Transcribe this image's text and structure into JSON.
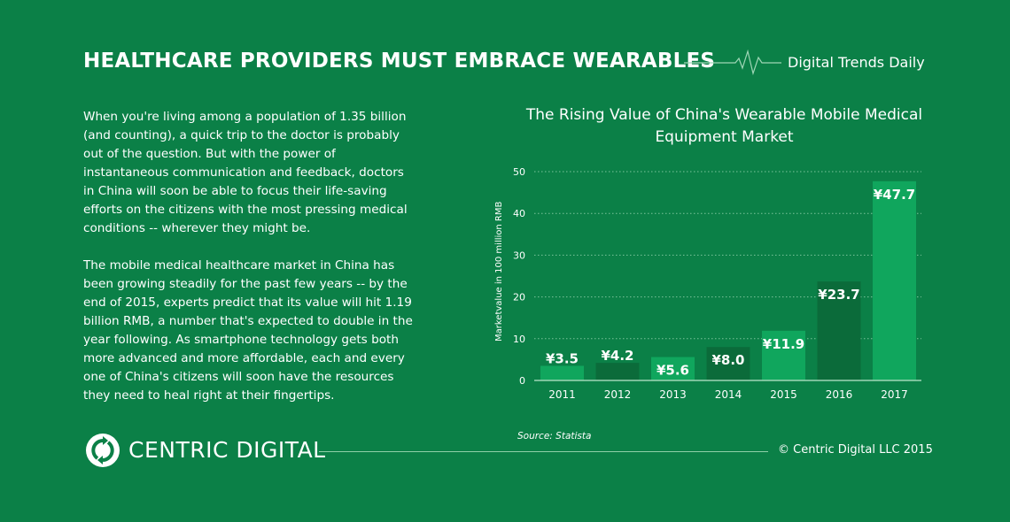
{
  "header": {
    "title": "HEALTHCARE PROVIDERS MUST EMBRACE WEARABLES",
    "brand": "Digital Trends Daily",
    "pulse_icon": "heartbeat-line-icon"
  },
  "body": {
    "paragraphs": [
      "When you're living among a population of 1.35 billion (and counting), a quick trip to the doctor is probably out of the question. But with the power of instantaneous communication and feedback, doctors in China will soon be able to focus their life-saving efforts on the citizens with the most pressing medical conditions -- wherever they might be.",
      "The mobile medical healthcare market in China has been growing steadily for the past few years -- by the end of 2015, experts predict that its value will hit 1.19 billion RMB, a number that's expected to double in the year following. As smartphone technology gets both more advanced and more affordable, each and every one of China's citizens will soon have the resources they need to heal right at their fingertips."
    ]
  },
  "footer": {
    "logo_text": "CENTRIC DIGITAL",
    "copyright": "© Centric Digital LLC 2015",
    "source": "Source: Statista"
  },
  "colors": {
    "background": "#0b8047",
    "bar_light": "#10a65d",
    "bar_dark": "#0b6b3a"
  },
  "chart_data": {
    "type": "bar",
    "title": "The Rising Value of China's Wearable Mobile Medical Equipment Market",
    "xlabel": "",
    "ylabel": "Marketvalue in 100 million RMB",
    "categories": [
      "2011",
      "2012",
      "2013",
      "2014",
      "2015",
      "2016",
      "2017"
    ],
    "values": [
      3.5,
      4.2,
      5.6,
      8.0,
      11.9,
      23.7,
      47.7
    ],
    "data_labels": [
      "¥3.5",
      "¥4.2",
      "¥5.6",
      "¥8.0",
      "¥11.9",
      "¥23.7",
      "¥47.7"
    ],
    "yticks": [
      0,
      10,
      20,
      30,
      40,
      50
    ],
    "ylim": [
      0,
      50
    ],
    "grid": true
  }
}
